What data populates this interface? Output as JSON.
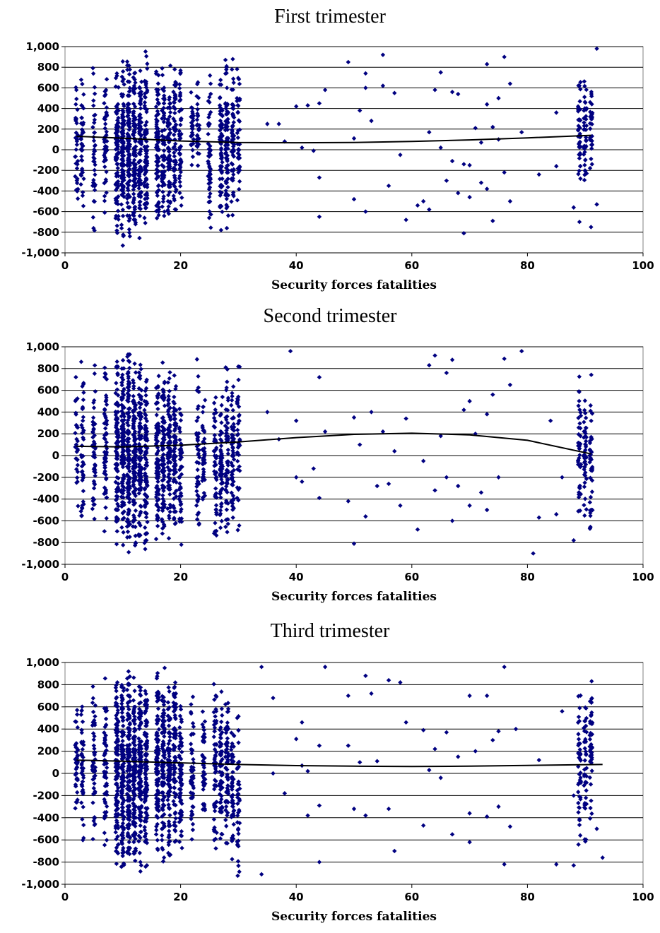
{
  "chart_data": [
    {
      "type": "scatter",
      "title": "First trimester",
      "xlabel": "Security forces fatalities",
      "ylabel": "",
      "xlim": [
        0,
        100
      ],
      "ylim": [
        -1000,
        1000
      ],
      "xticks": [
        "0",
        "20",
        "40",
        "60",
        "80",
        "100"
      ],
      "yticks": [
        "1,000",
        "800",
        "600",
        "400",
        "200",
        "0",
        "-200",
        "-400",
        "-600",
        "-800",
        "-1,000"
      ],
      "grid": "horizontal",
      "marker_color": "#000080",
      "trend_color": "#000000",
      "trend_line": {
        "x": [
          2,
          10,
          20,
          30,
          40,
          50,
          60,
          70,
          80,
          91
        ],
        "y": [
          130,
          112,
          85,
          70,
          68,
          70,
          80,
          95,
          115,
          140
        ]
      },
      "sparse_points": [
        [
          35,
          250
        ],
        [
          37,
          250
        ],
        [
          38,
          80
        ],
        [
          40,
          420
        ],
        [
          42,
          430
        ],
        [
          41,
          20
        ],
        [
          43,
          -10
        ],
        [
          44,
          450
        ],
        [
          44,
          -270
        ],
        [
          44,
          -650
        ],
        [
          45,
          580
        ],
        [
          49,
          850
        ],
        [
          50,
          110
        ],
        [
          50,
          -480
        ],
        [
          51,
          380
        ],
        [
          52,
          740
        ],
        [
          52,
          600
        ],
        [
          52,
          -600
        ],
        [
          53,
          280
        ],
        [
          55,
          920
        ],
        [
          55,
          620
        ],
        [
          56,
          -350
        ],
        [
          57,
          550
        ],
        [
          58,
          -50
        ],
        [
          59,
          -680
        ],
        [
          61,
          -540
        ],
        [
          62,
          -500
        ],
        [
          63,
          170
        ],
        [
          63,
          -580
        ],
        [
          64,
          580
        ],
        [
          65,
          750
        ],
        [
          65,
          20
        ],
        [
          66,
          -300
        ],
        [
          67,
          -110
        ],
        [
          67,
          560
        ],
        [
          68,
          -420
        ],
        [
          68,
          540
        ],
        [
          69,
          -810
        ],
        [
          69,
          -140
        ],
        [
          70,
          -150
        ],
        [
          70,
          -460
        ],
        [
          71,
          210
        ],
        [
          72,
          70
        ],
        [
          72,
          -320
        ],
        [
          73,
          830
        ],
        [
          73,
          -380
        ],
        [
          73,
          440
        ],
        [
          74,
          -690
        ],
        [
          74,
          220
        ],
        [
          75,
          500
        ],
        [
          75,
          100
        ],
        [
          76,
          900
        ],
        [
          76,
          -220
        ],
        [
          77,
          640
        ],
        [
          77,
          -500
        ],
        [
          79,
          170
        ],
        [
          82,
          -240
        ],
        [
          85,
          360
        ],
        [
          85,
          -160
        ],
        [
          88,
          -560
        ],
        [
          89,
          -700
        ],
        [
          91,
          -750
        ],
        [
          92,
          -530
        ],
        [
          92,
          980
        ]
      ],
      "dense_columns": [
        [
          2,
          -700,
          800,
          35
        ],
        [
          3,
          -600,
          700,
          40
        ],
        [
          5,
          -800,
          800,
          40
        ],
        [
          7,
          -800,
          900,
          50
        ],
        [
          9,
          -950,
          950,
          90
        ],
        [
          10,
          -950,
          980,
          110
        ],
        [
          11,
          -900,
          1000,
          110
        ],
        [
          12,
          -920,
          950,
          100
        ],
        [
          13,
          -900,
          980,
          90
        ],
        [
          14,
          -950,
          1000,
          90
        ],
        [
          16,
          -900,
          980,
          80
        ],
        [
          17,
          -850,
          900,
          70
        ],
        [
          18,
          -850,
          900,
          70
        ],
        [
          19,
          -700,
          900,
          60
        ],
        [
          20,
          -750,
          900,
          50
        ],
        [
          22,
          -400,
          700,
          30
        ],
        [
          23,
          -300,
          700,
          30
        ],
        [
          25,
          -1000,
          850,
          50
        ],
        [
          27,
          -800,
          900,
          70
        ],
        [
          28,
          -850,
          900,
          70
        ],
        [
          29,
          -700,
          950,
          60
        ],
        [
          30,
          -600,
          800,
          40
        ],
        [
          89,
          -400,
          800,
          40
        ],
        [
          90,
          -400,
          800,
          40
        ],
        [
          91,
          -300,
          700,
          30
        ]
      ]
    },
    {
      "type": "scatter",
      "title": "Second trimester",
      "xlabel": "Security forces fatalities",
      "ylabel": "",
      "xlim": [
        0,
        100
      ],
      "ylim": [
        -1000,
        1000
      ],
      "xticks": [
        "0",
        "20",
        "40",
        "60",
        "80",
        "100"
      ],
      "yticks": [
        "1,000",
        "800",
        "600",
        "400",
        "200",
        "0",
        "-200",
        "-400",
        "-600",
        "-800",
        "-1,000"
      ],
      "grid": "horizontal",
      "marker_color": "#000080",
      "trend_line": {
        "x": [
          2,
          10,
          20,
          30,
          40,
          50,
          60,
          70,
          80,
          91
        ],
        "y": [
          85,
          80,
          95,
          125,
          165,
          195,
          205,
          190,
          140,
          15
        ]
      },
      "sparse_points": [
        [
          35,
          400
        ],
        [
          37,
          150
        ],
        [
          39,
          960
        ],
        [
          40,
          320
        ],
        [
          40,
          -200
        ],
        [
          41,
          -240
        ],
        [
          43,
          -120
        ],
        [
          44,
          720
        ],
        [
          44,
          -390
        ],
        [
          45,
          220
        ],
        [
          49,
          -420
        ],
        [
          50,
          -810
        ],
        [
          50,
          350
        ],
        [
          51,
          100
        ],
        [
          52,
          -560
        ],
        [
          53,
          400
        ],
        [
          54,
          -280
        ],
        [
          55,
          220
        ],
        [
          56,
          -260
        ],
        [
          57,
          40
        ],
        [
          58,
          -460
        ],
        [
          59,
          340
        ],
        [
          61,
          -680
        ],
        [
          62,
          -50
        ],
        [
          63,
          830
        ],
        [
          64,
          920
        ],
        [
          64,
          -320
        ],
        [
          65,
          180
        ],
        [
          66,
          760
        ],
        [
          66,
          -200
        ],
        [
          67,
          880
        ],
        [
          67,
          -600
        ],
        [
          68,
          -280
        ],
        [
          69,
          420
        ],
        [
          70,
          500
        ],
        [
          70,
          -460
        ],
        [
          71,
          200
        ],
        [
          72,
          -340
        ],
        [
          73,
          -500
        ],
        [
          73,
          380
        ],
        [
          74,
          560
        ],
        [
          75,
          -200
        ],
        [
          76,
          890
        ],
        [
          77,
          650
        ],
        [
          79,
          960
        ],
        [
          81,
          -900
        ],
        [
          82,
          -570
        ],
        [
          84,
          320
        ],
        [
          85,
          -540
        ],
        [
          86,
          -200
        ],
        [
          88,
          -780
        ]
      ],
      "dense_columns": [
        [
          2,
          -500,
          900,
          30
        ],
        [
          3,
          -700,
          900,
          40
        ],
        [
          5,
          -880,
          950,
          50
        ],
        [
          7,
          -800,
          900,
          60
        ],
        [
          9,
          -900,
          980,
          100
        ],
        [
          10,
          -950,
          980,
          120
        ],
        [
          11,
          -1000,
          1000,
          120
        ],
        [
          12,
          -900,
          950,
          110
        ],
        [
          13,
          -900,
          900,
          100
        ],
        [
          14,
          -950,
          900,
          90
        ],
        [
          16,
          -850,
          850,
          90
        ],
        [
          17,
          -870,
          900,
          90
        ],
        [
          18,
          -830,
          850,
          80
        ],
        [
          19,
          -850,
          800,
          70
        ],
        [
          20,
          -870,
          600,
          50
        ],
        [
          23,
          -800,
          980,
          50
        ],
        [
          24,
          -600,
          600,
          40
        ],
        [
          26,
          -820,
          600,
          50
        ],
        [
          27,
          -750,
          600,
          60
        ],
        [
          28,
          -800,
          900,
          60
        ],
        [
          29,
          -750,
          800,
          60
        ],
        [
          30,
          -750,
          1000,
          40
        ],
        [
          89,
          -780,
          800,
          40
        ],
        [
          90,
          -650,
          650,
          40
        ],
        [
          91,
          -880,
          780,
          40
        ]
      ]
    },
    {
      "type": "scatter",
      "title": "Third trimester",
      "xlabel": "Security forces fatalities",
      "ylabel": "",
      "xlim": [
        0,
        100
      ],
      "ylim": [
        -1000,
        1000
      ],
      "xticks": [
        "0",
        "20",
        "40",
        "60",
        "80",
        "100"
      ],
      "yticks": [
        "1,000",
        "800",
        "600",
        "400",
        "200",
        "0",
        "-200",
        "-400",
        "-600",
        "-800",
        "-1,000"
      ],
      "grid": "horizontal",
      "marker_color": "#000080",
      "trend_line": {
        "x": [
          2,
          10,
          20,
          30,
          40,
          50,
          60,
          70,
          80,
          93
        ],
        "y": [
          120,
          110,
          95,
          80,
          70,
          65,
          62,
          65,
          72,
          80
        ]
      },
      "sparse_points": [
        [
          34,
          960
        ],
        [
          34,
          -910
        ],
        [
          36,
          680
        ],
        [
          36,
          0
        ],
        [
          38,
          -180
        ],
        [
          40,
          310
        ],
        [
          41,
          460
        ],
        [
          41,
          70
        ],
        [
          42,
          -380
        ],
        [
          42,
          20
        ],
        [
          44,
          250
        ],
        [
          44,
          -800
        ],
        [
          44,
          -290
        ],
        [
          45,
          960
        ],
        [
          49,
          250
        ],
        [
          49,
          700
        ],
        [
          50,
          -320
        ],
        [
          51,
          100
        ],
        [
          52,
          880
        ],
        [
          52,
          -380
        ],
        [
          53,
          720
        ],
        [
          54,
          110
        ],
        [
          56,
          840
        ],
        [
          56,
          -320
        ],
        [
          57,
          -700
        ],
        [
          58,
          820
        ],
        [
          59,
          460
        ],
        [
          62,
          390
        ],
        [
          62,
          -470
        ],
        [
          63,
          30
        ],
        [
          64,
          220
        ],
        [
          65,
          -40
        ],
        [
          66,
          370
        ],
        [
          67,
          -550
        ],
        [
          68,
          150
        ],
        [
          70,
          -620
        ],
        [
          70,
          -360
        ],
        [
          70,
          700
        ],
        [
          71,
          200
        ],
        [
          73,
          700
        ],
        [
          73,
          -390
        ],
        [
          74,
          300
        ],
        [
          75,
          380
        ],
        [
          75,
          -300
        ],
        [
          76,
          960
        ],
        [
          76,
          -820
        ],
        [
          77,
          -480
        ],
        [
          78,
          400
        ],
        [
          82,
          120
        ],
        [
          85,
          -820
        ],
        [
          86,
          560
        ],
        [
          88,
          -830
        ],
        [
          88,
          -200
        ],
        [
          89,
          -210
        ],
        [
          92,
          -500
        ],
        [
          93,
          -760
        ]
      ],
      "dense_columns": [
        [
          2,
          -500,
          700,
          40
        ],
        [
          3,
          -700,
          700,
          40
        ],
        [
          5,
          -730,
          850,
          50
        ],
        [
          7,
          -800,
          900,
          60
        ],
        [
          9,
          -950,
          980,
          110
        ],
        [
          10,
          -950,
          980,
          130
        ],
        [
          11,
          -900,
          1000,
          130
        ],
        [
          12,
          -900,
          950,
          120
        ],
        [
          13,
          -920,
          950,
          110
        ],
        [
          14,
          -930,
          900,
          100
        ],
        [
          16,
          -900,
          950,
          100
        ],
        [
          17,
          -880,
          980,
          100
        ],
        [
          18,
          -850,
          900,
          90
        ],
        [
          19,
          -850,
          1000,
          80
        ],
        [
          20,
          -800,
          800,
          70
        ],
        [
          22,
          -700,
          800,
          50
        ],
        [
          24,
          -600,
          600,
          40
        ],
        [
          26,
          -800,
          900,
          60
        ],
        [
          27,
          -750,
          850,
          60
        ],
        [
          28,
          -760,
          800,
          60
        ],
        [
          29,
          -900,
          650,
          50
        ],
        [
          30,
          -1000,
          700,
          40
        ],
        [
          89,
          -800,
          900,
          40
        ],
        [
          90,
          -700,
          850,
          40
        ],
        [
          91,
          -650,
          1000,
          40
        ]
      ]
    }
  ]
}
